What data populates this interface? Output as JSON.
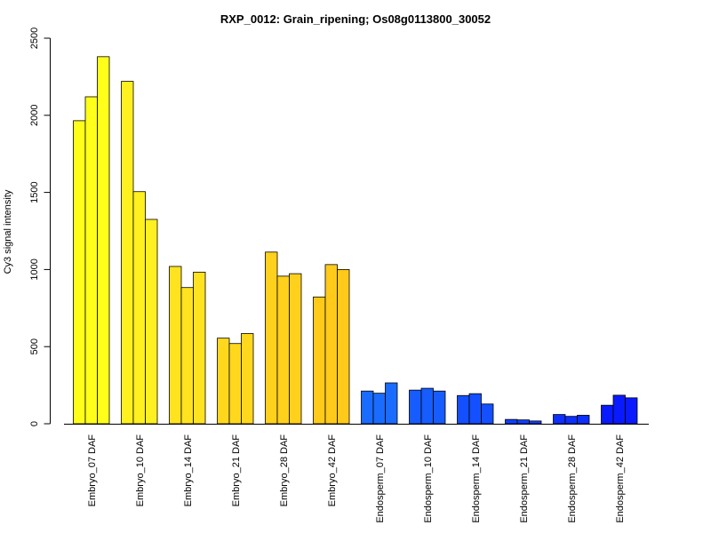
{
  "chart_data": {
    "type": "bar",
    "title": "RXP_0012: Grain_ripening; Os08g0113800_30052",
    "ylabel": "Cy3 signal intensity",
    "xlabel": "",
    "ylim": [
      0,
      2500
    ],
    "yticks": [
      0,
      500,
      1000,
      1500,
      2000,
      2500
    ],
    "grid": false,
    "legend": "none",
    "categories": [
      "Embryo_07 DAF",
      "Embryo_10 DAF",
      "Embryo_14 DAF",
      "Embryo_21 DAF",
      "Embryo_28 DAF",
      "Embryo_42 DAF",
      "Endosperm_07 DAF",
      "Endosperm_10 DAF",
      "Endosperm_14 DAF",
      "Endosperm_21 DAF",
      "Endosperm_28 DAF",
      "Endosperm_42 DAF"
    ],
    "colors": [
      "#ffff1a",
      "#fff01f",
      "#ffe320",
      "#ffd81e",
      "#ffd01c",
      "#ffca1a",
      "#1a6bff",
      "#165cff",
      "#1450ff",
      "#1040ff",
      "#0c30ff",
      "#0a1aff"
    ],
    "replicates": [
      [
        1965,
        2120,
        2380
      ],
      [
        2220,
        1505,
        1325
      ],
      [
        1020,
        883,
        983
      ],
      [
        555,
        520,
        585
      ],
      [
        1113,
        957,
        973
      ],
      [
        822,
        1032,
        1000
      ],
      [
        212,
        198,
        265
      ],
      [
        218,
        230,
        212
      ],
      [
        183,
        195,
        128
      ],
      [
        28,
        25,
        18
      ],
      [
        60,
        48,
        55
      ],
      [
        120,
        185,
        168
      ]
    ]
  }
}
